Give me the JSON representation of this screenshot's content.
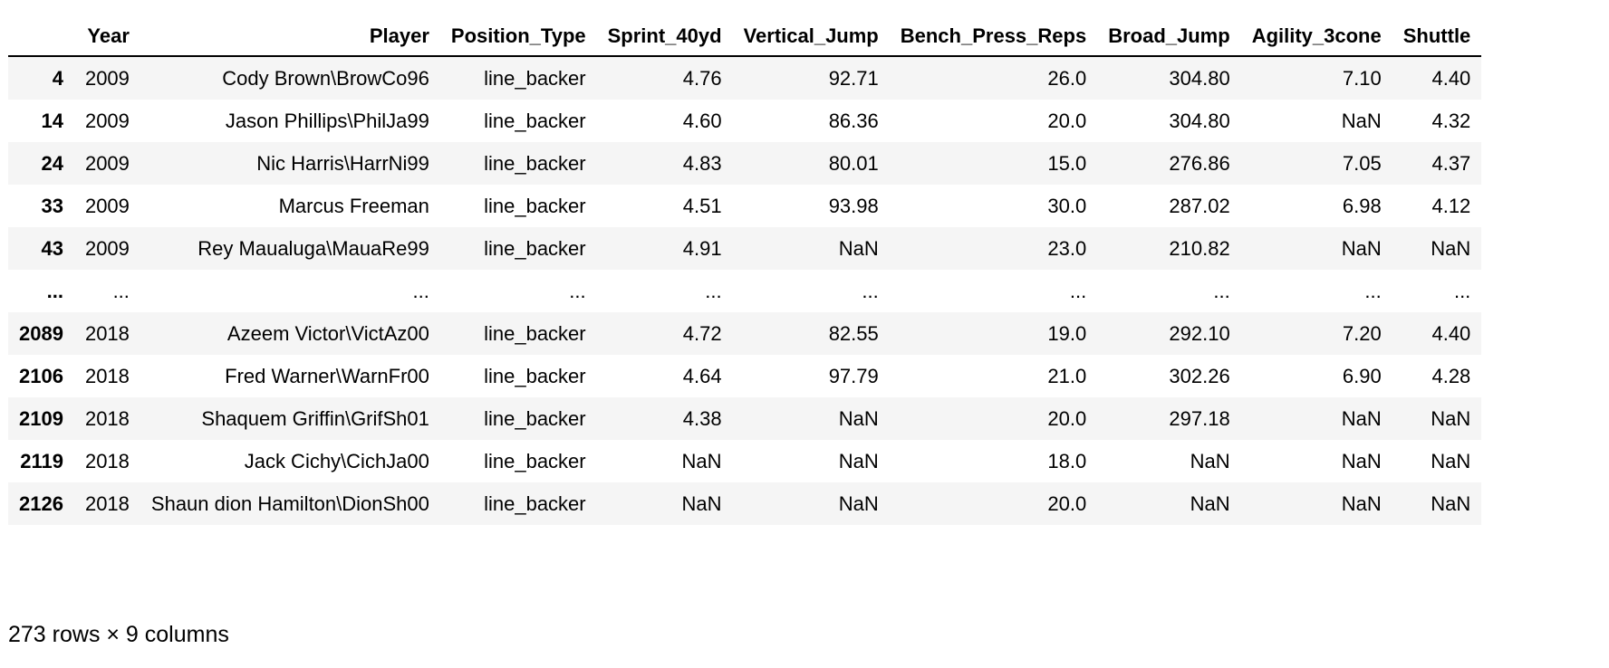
{
  "columns": [
    "",
    "Year",
    "Player",
    "Position_Type",
    "Sprint_40yd",
    "Vertical_Jump",
    "Bench_Press_Reps",
    "Broad_Jump",
    "Agility_3cone",
    "Shuttle"
  ],
  "rows": [
    [
      "4",
      "2009",
      "Cody Brown\\BrowCo96",
      "line_backer",
      "4.76",
      "92.71",
      "26.0",
      "304.80",
      "7.10",
      "4.40"
    ],
    [
      "14",
      "2009",
      "Jason Phillips\\PhilJa99",
      "line_backer",
      "4.60",
      "86.36",
      "20.0",
      "304.80",
      "NaN",
      "4.32"
    ],
    [
      "24",
      "2009",
      "Nic Harris\\HarrNi99",
      "line_backer",
      "4.83",
      "80.01",
      "15.0",
      "276.86",
      "7.05",
      "4.37"
    ],
    [
      "33",
      "2009",
      "Marcus Freeman",
      "line_backer",
      "4.51",
      "93.98",
      "30.0",
      "287.02",
      "6.98",
      "4.12"
    ],
    [
      "43",
      "2009",
      "Rey Maualuga\\MauaRe99",
      "line_backer",
      "4.91",
      "NaN",
      "23.0",
      "210.82",
      "NaN",
      "NaN"
    ],
    [
      "...",
      "...",
      "...",
      "...",
      "...",
      "...",
      "...",
      "...",
      "...",
      "..."
    ],
    [
      "2089",
      "2018",
      "Azeem Victor\\VictAz00",
      "line_backer",
      "4.72",
      "82.55",
      "19.0",
      "292.10",
      "7.20",
      "4.40"
    ],
    [
      "2106",
      "2018",
      "Fred Warner\\WarnFr00",
      "line_backer",
      "4.64",
      "97.79",
      "21.0",
      "302.26",
      "6.90",
      "4.28"
    ],
    [
      "2109",
      "2018",
      "Shaquem Griffin\\GrifSh01",
      "line_backer",
      "4.38",
      "NaN",
      "20.0",
      "297.18",
      "NaN",
      "NaN"
    ],
    [
      "2119",
      "2018",
      "Jack Cichy\\CichJa00",
      "line_backer",
      "NaN",
      "NaN",
      "18.0",
      "NaN",
      "NaN",
      "NaN"
    ],
    [
      "2126",
      "2018",
      "Shaun dion Hamilton\\DionSh00",
      "line_backer",
      "NaN",
      "NaN",
      "20.0",
      "NaN",
      "NaN",
      "NaN"
    ]
  ],
  "shape_caption": "273 rows × 9 columns",
  "colors": {
    "stripe": "#f5f5f5",
    "header_rule": "#000000",
    "text": "#000000"
  }
}
